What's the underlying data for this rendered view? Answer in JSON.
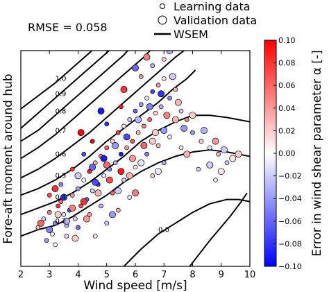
{
  "chart_data": {
    "type": "scatter",
    "annotation": "RMSE = 0.058",
    "xlabel": "Wind speed [m/s]",
    "ylabel": "Fore-aft moment around hub",
    "xlim": [
      2,
      10
    ],
    "x_ticks": [
      2,
      3,
      4,
      5,
      6,
      7,
      8,
      9,
      10
    ],
    "y_ticks_shown": false,
    "legend": {
      "placement": "top",
      "entries": [
        {
          "label": "Learning data",
          "marker": "small-circle"
        },
        {
          "label": "Validation data",
          "marker": "large-circle"
        },
        {
          "label": "WSEM",
          "marker": "line"
        }
      ]
    },
    "colorbar": {
      "label": "Error in wind shear parameter α [-]",
      "range": [
        -0.1,
        0.1
      ],
      "ticks": [
        "0.10",
        "0.08",
        "0.06",
        "0.04",
        "0.02",
        "0.00",
        "−0.02",
        "−0.04",
        "−0.06",
        "−0.08",
        "−0.10"
      ],
      "colors": {
        "low": "#0000ff",
        "mid": "#ffffff",
        "high": "#ff0000"
      }
    },
    "contours": [
      {
        "level": "1.0",
        "x": [
          2.0,
          2.6,
          3.2,
          3.8,
          4.4,
          4.8
        ],
        "y": [
          0.73,
          0.79,
          0.85,
          0.92,
          0.99,
          1.04
        ]
      },
      {
        "level": "0.9",
        "x": [
          2.0,
          2.6,
          3.2,
          3.8,
          4.4,
          5.0,
          5.4
        ],
        "y": [
          0.64,
          0.71,
          0.78,
          0.85,
          0.92,
          0.99,
          1.04
        ]
      },
      {
        "level": "0.8",
        "x": [
          2.0,
          2.6,
          3.2,
          3.8,
          4.4,
          5.0,
          5.6,
          6.0
        ],
        "y": [
          0.58,
          0.63,
          0.7,
          0.77,
          0.84,
          0.91,
          0.98,
          1.04
        ]
      },
      {
        "level": "0.7",
        "x": [
          2.0,
          2.6,
          3.2,
          3.8,
          4.4,
          5.0,
          5.6,
          6.3,
          6.8
        ],
        "y": [
          0.5,
          0.55,
          0.61,
          0.68,
          0.75,
          0.82,
          0.89,
          0.97,
          1.04
        ]
      },
      {
        "level": "0.6",
        "x": [
          2.0,
          2.6,
          3.2,
          3.8,
          4.4,
          5.0,
          5.6,
          6.2,
          6.8,
          7.4,
          8.0
        ],
        "y": [
          0.41,
          0.45,
          0.5,
          0.56,
          0.62,
          0.69,
          0.76,
          0.83,
          0.9,
          0.97,
          1.03
        ]
      },
      {
        "level": "0.5",
        "x": [
          2.0,
          2.6,
          3.2,
          3.8,
          4.4,
          5.0,
          5.6,
          6.2,
          6.8,
          7.3,
          7.8,
          8.1
        ],
        "y": [
          0.33,
          0.36,
          0.4,
          0.45,
          0.51,
          0.58,
          0.64,
          0.7,
          0.76,
          0.82,
          0.87,
          0.91
        ]
      },
      {
        "level": "0.4",
        "x": [
          2.0,
          2.6,
          3.2,
          3.8,
          4.4,
          5.0,
          5.6,
          6.2,
          6.8,
          7.4,
          8.0,
          8.6,
          9.2,
          10.0
        ],
        "y": [
          0.24,
          0.27,
          0.3,
          0.34,
          0.39,
          0.45,
          0.51,
          0.58,
          0.63,
          0.67,
          0.7,
          0.7,
          0.69,
          0.67
        ]
      },
      {
        "level": "0.2",
        "x": [
          2.0,
          2.6,
          3.2,
          3.8,
          4.4,
          5.0,
          5.6,
          6.2,
          6.8,
          7.4,
          8.0,
          8.6,
          9.2,
          10.0
        ],
        "y": [
          0.14,
          0.17,
          0.19,
          0.23,
          0.28,
          0.33,
          0.39,
          0.44,
          0.48,
          0.51,
          0.53,
          0.54,
          0.53,
          0.51
        ]
      },
      {
        "level": "0.0",
        "x": [
          5.6,
          6.2,
          6.8,
          7.4,
          8.0,
          8.6,
          9.2,
          9.6,
          10.0
        ],
        "y": [
          0.0,
          0.08,
          0.15,
          0.2,
          0.25,
          0.29,
          0.31,
          0.31,
          0.3
        ]
      },
      {
        "level": "",
        "x": [
          7.9,
          8.6,
          9.3,
          9.7,
          9.9
        ],
        "y": [
          0.0,
          0.12,
          0.23,
          0.3,
          0.34
        ]
      }
    ],
    "series": [
      {
        "name": "Learning data",
        "marker_size": "small",
        "points": [
          [
            2.6,
            0.18,
            0.03
          ],
          [
            2.8,
            0.22,
            -0.02
          ],
          [
            3.0,
            0.25,
            0.05
          ],
          [
            3.2,
            0.2,
            -0.05
          ],
          [
            3.1,
            0.15,
            0.01
          ],
          [
            3.3,
            0.28,
            0.08
          ],
          [
            3.5,
            0.24,
            -0.01
          ],
          [
            3.4,
            0.3,
            0.06
          ],
          [
            3.6,
            0.19,
            -0.03
          ],
          [
            3.8,
            0.33,
            0.04
          ],
          [
            3.7,
            0.26,
            -0.07
          ],
          [
            3.9,
            0.22,
            0.02
          ],
          [
            4.0,
            0.36,
            -0.04
          ],
          [
            4.1,
            0.28,
            0.07
          ],
          [
            4.2,
            0.4,
            0.0
          ],
          [
            4.3,
            0.31,
            -0.06
          ],
          [
            4.4,
            0.44,
            0.09
          ],
          [
            4.5,
            0.35,
            -0.02
          ],
          [
            4.6,
            0.48,
            0.03
          ],
          [
            4.7,
            0.38,
            -0.08
          ],
          [
            4.8,
            0.51,
            0.05
          ],
          [
            4.9,
            0.42,
            -0.01
          ],
          [
            5.0,
            0.55,
            0.06
          ],
          [
            5.1,
            0.45,
            -0.05
          ],
          [
            5.2,
            0.58,
            0.02
          ],
          [
            5.3,
            0.48,
            -0.03
          ],
          [
            5.4,
            0.62,
            0.08
          ],
          [
            5.5,
            0.52,
            -0.09
          ],
          [
            5.6,
            0.65,
            0.01
          ],
          [
            5.7,
            0.55,
            0.04
          ],
          [
            5.8,
            0.68,
            -0.02
          ],
          [
            5.9,
            0.58,
            0.07
          ],
          [
            6.0,
            0.72,
            -0.06
          ],
          [
            6.1,
            0.62,
            0.03
          ],
          [
            6.2,
            0.75,
            -0.04
          ],
          [
            6.3,
            0.65,
            0.05
          ],
          [
            6.4,
            0.78,
            -0.01
          ],
          [
            6.5,
            0.68,
            0.06
          ],
          [
            6.6,
            0.81,
            -0.07
          ],
          [
            6.7,
            0.71,
            0.02
          ],
          [
            6.8,
            0.84,
            0.04
          ],
          [
            6.9,
            0.74,
            -0.03
          ],
          [
            7.0,
            0.87,
            0.01
          ],
          [
            7.2,
            0.78,
            -0.05
          ],
          [
            7.4,
            0.82,
            0.03
          ],
          [
            7.6,
            0.72,
            -0.02
          ],
          [
            7.8,
            0.68,
            0.05
          ],
          [
            8.0,
            0.62,
            -0.04
          ],
          [
            8.3,
            0.58,
            0.02
          ],
          [
            8.6,
            0.55,
            -0.01
          ],
          [
            8.9,
            0.52,
            0.03
          ],
          [
            9.2,
            0.48,
            -0.02
          ],
          [
            3.0,
            0.33,
            0.07
          ],
          [
            2.9,
            0.12,
            -0.04
          ],
          [
            3.6,
            0.14,
            0.02
          ],
          [
            4.0,
            0.18,
            -0.06
          ],
          [
            4.4,
            0.24,
            0.04
          ],
          [
            4.8,
            0.28,
            -0.03
          ],
          [
            5.2,
            0.34,
            0.06
          ],
          [
            5.6,
            0.4,
            -0.02
          ],
          [
            6.0,
            0.46,
            0.01
          ],
          [
            6.4,
            0.52,
            -0.05
          ],
          [
            6.8,
            0.56,
            0.03
          ],
          [
            7.2,
            0.6,
            -0.01
          ],
          [
            5.5,
            0.74,
            0.09
          ],
          [
            5.0,
            0.66,
            -0.08
          ],
          [
            4.5,
            0.58,
            0.1
          ],
          [
            4.2,
            0.52,
            -0.07
          ],
          [
            3.8,
            0.45,
            0.08
          ],
          [
            3.4,
            0.38,
            -0.05
          ],
          [
            6.2,
            0.88,
            0.04
          ],
          [
            6.6,
            0.93,
            -0.03
          ],
          [
            7.0,
            0.96,
            0.02
          ],
          [
            3.2,
            0.1,
            0.0
          ],
          [
            4.6,
            0.14,
            0.01
          ],
          [
            5.0,
            0.2,
            -0.02
          ],
          [
            5.4,
            0.26,
            0.03
          ],
          [
            5.8,
            0.32,
            -0.01
          ],
          [
            6.6,
            0.42,
            0.02
          ],
          [
            7.0,
            0.48,
            -0.03
          ],
          [
            7.6,
            0.55,
            0.01
          ],
          [
            8.2,
            0.45,
            -0.02
          ],
          [
            8.8,
            0.4,
            0.01
          ]
        ]
      },
      {
        "name": "Validation data",
        "marker_size": "large",
        "points": [
          [
            2.7,
            0.2,
            0.06
          ],
          [
            3.0,
            0.17,
            -0.05
          ],
          [
            3.3,
            0.24,
            0.02
          ],
          [
            3.5,
            0.32,
            -0.08
          ],
          [
            3.8,
            0.27,
            0.05
          ],
          [
            4.0,
            0.42,
            -0.02
          ],
          [
            4.2,
            0.3,
            0.08
          ],
          [
            4.5,
            0.46,
            -0.06
          ],
          [
            4.7,
            0.34,
            0.03
          ],
          [
            4.9,
            0.5,
            -0.09
          ],
          [
            5.1,
            0.4,
            0.07
          ],
          [
            5.3,
            0.56,
            -0.04
          ],
          [
            5.5,
            0.44,
            0.09
          ],
          [
            5.7,
            0.6,
            -0.07
          ],
          [
            5.9,
            0.5,
            0.04
          ],
          [
            6.1,
            0.68,
            -0.03
          ],
          [
            6.3,
            0.56,
            0.06
          ],
          [
            6.5,
            0.74,
            -0.05
          ],
          [
            6.7,
            0.62,
            0.02
          ],
          [
            6.9,
            0.8,
            -0.08
          ],
          [
            7.1,
            0.7,
            0.05
          ],
          [
            7.3,
            0.88,
            -0.02
          ],
          [
            7.5,
            0.76,
            0.03
          ],
          [
            7.7,
            0.64,
            -0.04
          ],
          [
            8.0,
            0.7,
            0.02
          ],
          [
            8.4,
            0.63,
            -0.03
          ],
          [
            8.8,
            0.58,
            0.04
          ],
          [
            9.1,
            0.54,
            -0.02
          ],
          [
            9.4,
            0.5,
            0.01
          ],
          [
            3.2,
            0.36,
            0.08
          ],
          [
            3.6,
            0.21,
            -0.03
          ],
          [
            4.3,
            0.22,
            0.04
          ],
          [
            4.6,
            0.39,
            -0.07
          ],
          [
            5.0,
            0.47,
            0.06
          ],
          [
            5.4,
            0.35,
            -0.02
          ],
          [
            5.8,
            0.42,
            0.03
          ],
          [
            6.2,
            0.48,
            -0.01
          ],
          [
            6.6,
            0.58,
            0.02
          ],
          [
            7.0,
            0.63,
            -0.04
          ],
          [
            7.4,
            0.68,
            0.03
          ],
          [
            4.1,
            0.62,
            0.1
          ],
          [
            4.8,
            0.72,
            -0.09
          ],
          [
            5.6,
            0.82,
            0.08
          ],
          [
            6.0,
            0.92,
            -0.06
          ],
          [
            6.4,
            0.97,
            0.05
          ],
          [
            7.2,
            1.0,
            -0.03
          ],
          [
            3.9,
            0.13,
            0.02
          ],
          [
            5.2,
            0.24,
            -0.04
          ],
          [
            6.0,
            0.34,
            0.05
          ],
          [
            6.8,
            0.44,
            -0.01
          ],
          [
            7.8,
            0.52,
            0.03
          ],
          [
            8.6,
            0.47,
            -0.02
          ],
          [
            9.0,
            0.44,
            0.01
          ],
          [
            9.6,
            0.52,
            0.02
          ]
        ]
      }
    ]
  }
}
